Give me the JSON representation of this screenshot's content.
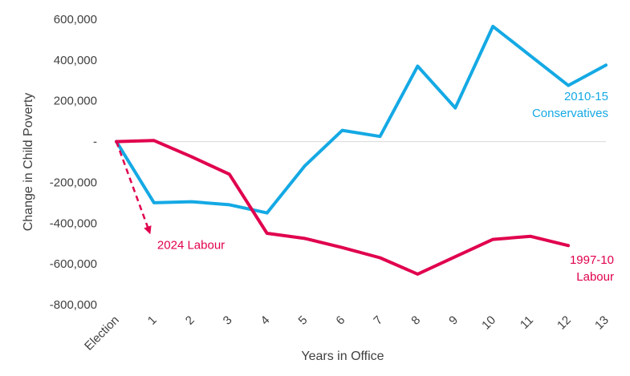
{
  "chart_data": {
    "type": "line",
    "title": "",
    "xlabel": "Years in Office",
    "ylabel": "Change in Child Poverty",
    "categories": [
      "Election",
      "1",
      "2",
      "3",
      "4",
      "5",
      "6",
      "7",
      "8",
      "9",
      "10",
      "11",
      "12",
      "13"
    ],
    "yticks": [
      600000,
      400000,
      200000,
      0,
      -200000,
      -400000,
      -600000,
      -800000
    ],
    "ytick_labels": [
      "600,000",
      "400,000",
      "200,000",
      "-",
      "-200,000",
      "-400,000",
      "-600,000",
      "-800,000"
    ],
    "ylim": [
      -800000,
      600000
    ],
    "grid": false,
    "series": [
      {
        "name": "2010-15 Conservatives",
        "color": "#14a9e4",
        "values": [
          0,
          -300000,
          -295000,
          -310000,
          -350000,
          -120000,
          55000,
          25000,
          370000,
          165000,
          565000,
          420000,
          275000,
          375000
        ]
      },
      {
        "name": "1997-10 Labour",
        "color": "#e0004d",
        "values": [
          0,
          5000,
          -75000,
          -160000,
          -450000,
          -475000,
          -520000,
          -570000,
          -650000,
          -565000,
          -480000,
          -465000,
          -510000,
          null
        ]
      }
    ],
    "annotations": [
      {
        "text": "2024 Labour",
        "color": "#e0004d",
        "style": "dashed-arrow",
        "from": {
          "x": "Election",
          "y": 0
        },
        "to": {
          "x": "1",
          "y": -440000
        }
      }
    ],
    "series_label_lines": {
      "2010-15 Conservatives": [
        "2010-15",
        "Conservatives"
      ],
      "1997-10 Labour": [
        "1997-10",
        "Labour"
      ]
    }
  }
}
